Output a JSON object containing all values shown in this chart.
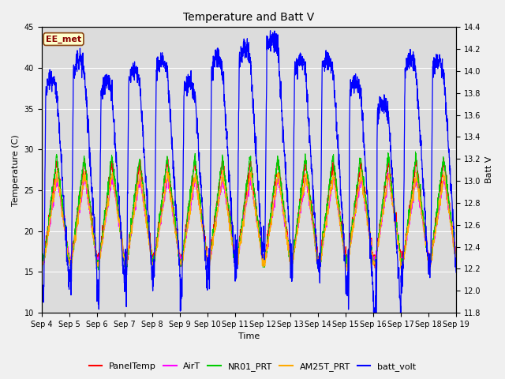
{
  "title": "Temperature and Batt V",
  "xlabel": "Time",
  "ylabel_left": "Temperature (C)",
  "ylabel_right": "Batt V",
  "annotation_text": "EE_met",
  "annotation_bg": "#ffffcc",
  "annotation_border": "#8b4513",
  "annotation_text_color": "#8b0000",
  "ylim_left": [
    10,
    45
  ],
  "ylim_right": [
    11.8,
    14.4
  ],
  "yticks_left": [
    10,
    15,
    20,
    25,
    30,
    35,
    40,
    45
  ],
  "yticks_right": [
    11.8,
    12.0,
    12.2,
    12.4,
    12.6,
    12.8,
    13.0,
    13.2,
    13.4,
    13.6,
    13.8,
    14.0,
    14.2,
    14.4
  ],
  "xtick_labels": [
    "Sep 4",
    "Sep 5",
    "Sep 6",
    "Sep 7",
    "Sep 8",
    "Sep 9",
    "Sep 10",
    "Sep 11",
    "Sep 12",
    "Sep 13",
    "Sep 14",
    "Sep 15",
    "Sep 16",
    "Sep 17",
    "Sep 18",
    "Sep 19"
  ],
  "plot_bg_color": "#dcdcdc",
  "grid_color": "#ffffff",
  "fig_bg_color": "#f0f0f0",
  "colors": {
    "PanelTemp": "#ff0000",
    "AirT": "#ff00ff",
    "NR01_PRT": "#00cc00",
    "AM25T_PRT": "#ffaa00",
    "batt_volt": "#0000ff"
  },
  "legend_labels": [
    "PanelTemp",
    "AirT",
    "NR01_PRT",
    "AM25T_PRT",
    "batt_volt"
  ],
  "num_days": 15,
  "points_per_day": 144,
  "title_fontsize": 10,
  "axis_fontsize": 8,
  "tick_fontsize": 7,
  "legend_fontsize": 8
}
